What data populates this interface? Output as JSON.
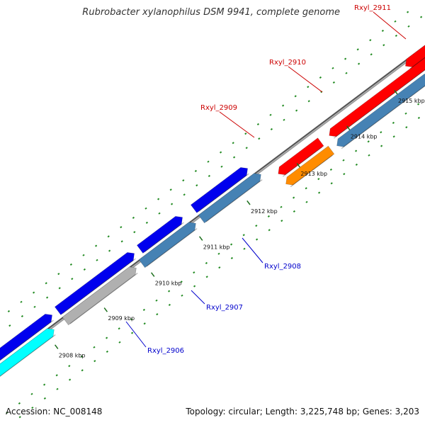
{
  "title": "Rubrobacter xylanophilus DSM 9941, complete genome",
  "footer": {
    "accession": "Accession: NC_008148",
    "summary": "Topology: circular; Length: 3,225,748 bp; Genes: 3,203"
  },
  "colors": {
    "forward_gene": "#0000ee",
    "forward_gene_alt": "#4682b4",
    "reverse_gene": "#ff0000",
    "orange_gene": "#ff8c00",
    "cyan_gene": "#00ffff",
    "grey_gene": "#b0b0b0",
    "backbone": "#808080",
    "tick": "#228b22",
    "label_forward": "#0000cc",
    "label_reverse": "#cc0000"
  },
  "scale_ticks": [
    {
      "label": "2908 kbp"
    },
    {
      "label": "2909 kbp"
    },
    {
      "label": "2910 kbp"
    },
    {
      "label": "2911 kbp"
    },
    {
      "label": "2912 kbp"
    },
    {
      "label": "2913 kbp"
    },
    {
      "label": "2914 kbp"
    },
    {
      "label": "2915 kbp"
    }
  ],
  "gene_labels": [
    {
      "name": "Rxyl_2906",
      "strand": "forward"
    },
    {
      "name": "Rxyl_2907",
      "strand": "forward"
    },
    {
      "name": "Rxyl_2908",
      "strand": "forward"
    },
    {
      "name": "Rxyl_2909",
      "strand": "reverse"
    },
    {
      "name": "Rxyl_2910",
      "strand": "reverse"
    },
    {
      "name": "Rxyl_2911",
      "strand": "reverse"
    }
  ]
}
